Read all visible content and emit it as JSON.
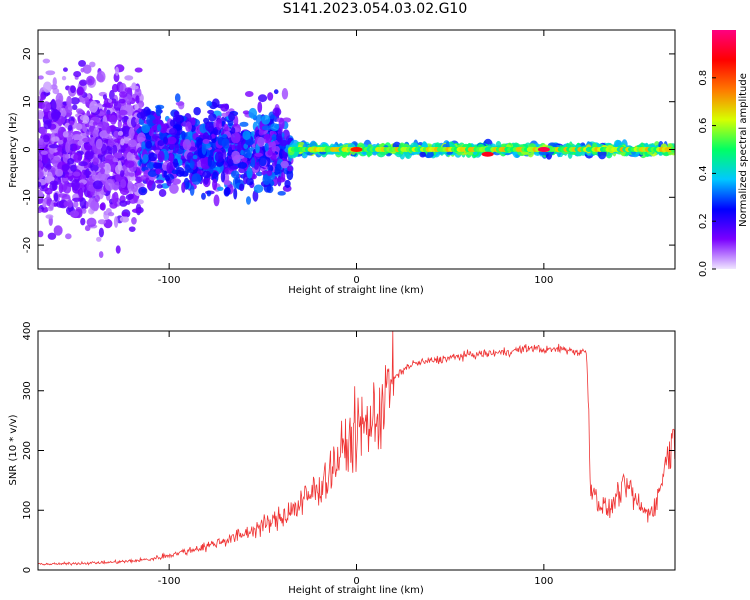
{
  "figure_title": "S141.2023.054.03.02.G10",
  "colorbar": {
    "label": "Normalized spectral amplitude",
    "ticks": [
      0.0,
      0.2,
      0.4,
      0.6,
      0.8
    ],
    "tick_labels": [
      "0.0",
      "0.2",
      "0.4",
      "0.6",
      "0.8"
    ],
    "colors": [
      "#f0e6ff",
      "#7a00ff",
      "#0000ff",
      "#00c8ff",
      "#00ff64",
      "#d7ff00",
      "#ff7800",
      "#ff0000",
      "#ff0080"
    ]
  },
  "chart_data": [
    {
      "type": "heatmap",
      "ylabel": "Frequency (Hz)",
      "xlabel": "Height of straight line (km)",
      "xlim": [
        -170,
        170
      ],
      "ylim": [
        -25,
        25
      ],
      "x_ticks": [
        -100,
        0,
        100
      ],
      "x_tick_labels": [
        "-100",
        "0",
        "100"
      ],
      "y_ticks": [
        -20,
        -10,
        0,
        10,
        20
      ],
      "y_tick_labels": [
        "-20",
        "-10",
        "0",
        "10",
        "20"
      ],
      "colormap": "rainbow",
      "color_range": [
        0.0,
        1.0
      ],
      "bands": [
        {
          "x_range": [
            -170,
            -115
          ],
          "freq_spread": 25,
          "amplitude": 0.12
        },
        {
          "x_range": [
            -115,
            -35
          ],
          "freq_spread": 14,
          "amplitude": 0.25
        },
        {
          "x_range": [
            -35,
            170
          ],
          "freq_spread": 1.5,
          "amplitude": 0.55
        }
      ],
      "peaks": [
        {
          "x": 0,
          "y": 0,
          "amplitude": 0.85
        },
        {
          "x": 70,
          "y": -1,
          "amplitude": 0.9
        },
        {
          "x": 100,
          "y": 0,
          "amplitude": 0.95
        }
      ]
    },
    {
      "type": "line",
      "ylabel": "SNR (10 * v/v)",
      "xlabel": "Height of straight line (km)",
      "xlim": [
        -170,
        170
      ],
      "ylim": [
        0,
        400
      ],
      "x_ticks": [
        -100,
        0,
        100
      ],
      "x_tick_labels": [
        "-100",
        "0",
        "100"
      ],
      "y_ticks": [
        0,
        100,
        200,
        300,
        400
      ],
      "y_tick_labels": [
        "0",
        "100",
        "200",
        "300",
        "400"
      ],
      "color": "#ef3434",
      "series": [
        {
          "x": [
            -170,
            -160,
            -150,
            -140,
            -130,
            -120,
            -110,
            -100,
            -90,
            -80,
            -70,
            -60,
            -50,
            -45,
            -40,
            -35,
            -30,
            -25,
            -20,
            -15,
            -10,
            -5,
            0,
            5,
            10,
            12,
            14,
            16,
            20,
            25,
            30,
            40,
            50,
            60,
            70,
            80,
            90,
            95,
            100,
            110,
            118,
            123,
            125,
            130,
            135,
            140,
            145,
            150,
            155,
            160,
            165,
            170
          ],
          "y": [
            10,
            10,
            11,
            12,
            13,
            15,
            18,
            25,
            32,
            40,
            50,
            60,
            75,
            80,
            90,
            100,
            110,
            125,
            140,
            160,
            185,
            210,
            230,
            245,
            250,
            265,
            280,
            300,
            320,
            335,
            345,
            350,
            355,
            360,
            362,
            365,
            370,
            372,
            368,
            370,
            365,
            365,
            140,
            110,
            100,
            130,
            140,
            110,
            95,
            110,
            180,
            230
          ]
        }
      ]
    }
  ]
}
